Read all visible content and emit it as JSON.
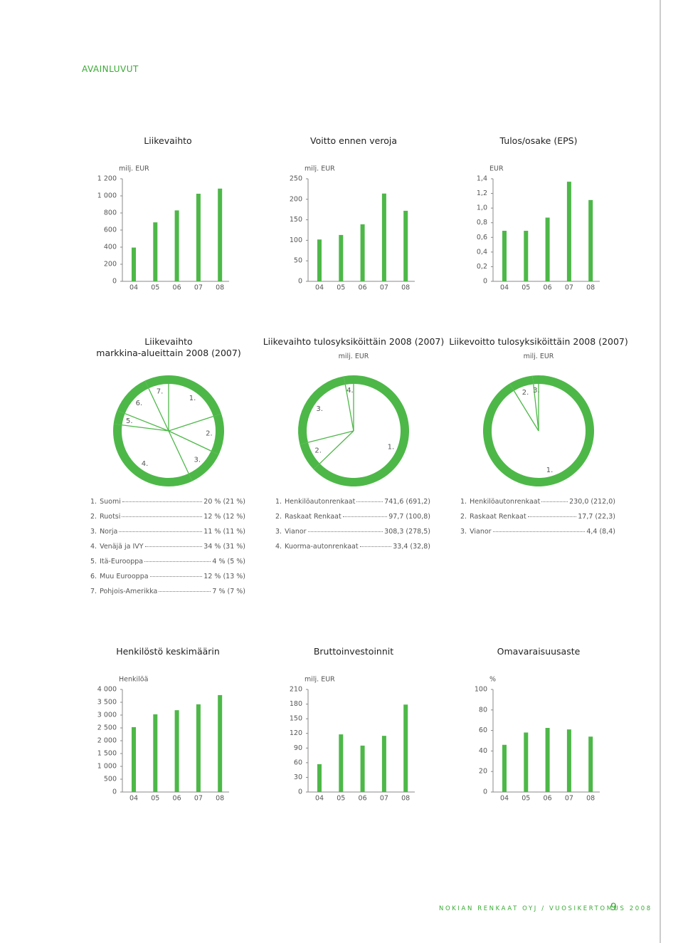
{
  "header": {
    "title": "AVAINLUVUT"
  },
  "chart_data": [
    {
      "type": "bar",
      "title": "Liikevaihto",
      "unit": "milj. EUR",
      "categories": [
        "04",
        "05",
        "06",
        "07",
        "08"
      ],
      "values": [
        395,
        690,
        830,
        1025,
        1085
      ],
      "color": "#4db848",
      "ylim": [
        0,
        1200
      ],
      "yticks": [
        0,
        200,
        400,
        600,
        800,
        {
          "value": 1000,
          "label": "1 000"
        },
        {
          "value": 1200,
          "label": "1 200"
        }
      ]
    },
    {
      "type": "bar",
      "title": "Voitto ennen veroja",
      "unit": "milj. EUR",
      "categories": [
        "04",
        "05",
        "06",
        "07",
        "08"
      ],
      "values": [
        102,
        113,
        139,
        214,
        172
      ],
      "color": "#4db848",
      "ylim": [
        0,
        250
      ],
      "yticks": [
        0,
        50,
        100,
        150,
        200,
        250
      ]
    },
    {
      "type": "bar",
      "title": "Tulos/osake (EPS)",
      "unit": "EUR",
      "categories": [
        "04",
        "05",
        "06",
        "07",
        "08"
      ],
      "values": [
        0.69,
        0.69,
        0.87,
        1.36,
        1.11
      ],
      "color": "#4db848",
      "ylim": [
        0,
        1.4
      ],
      "yticks": [
        0,
        {
          "value": 0.2,
          "label": "0,2"
        },
        {
          "value": 0.4,
          "label": "0,4"
        },
        {
          "value": 0.6,
          "label": "0,6"
        },
        {
          "value": 0.8,
          "label": "0,8"
        },
        {
          "value": 1.0,
          "label": "1,0"
        },
        {
          "value": 1.2,
          "label": "1,2"
        },
        {
          "value": 1.4,
          "label": "1,4"
        }
      ]
    },
    {
      "type": "donut",
      "title": "Liikevaihto\nmarkkina-alueittain 2008 (2007)",
      "color": "#4db848",
      "segment_labels": [
        "1.",
        "2.",
        "3.",
        "4.",
        "5.",
        "6.",
        "7."
      ],
      "categories": [
        "Suomi",
        "Ruotsi",
        "Norja",
        "Venäjä ja IVY",
        "Itä-Eurooppa",
        "Muu Eurooppa",
        "Pohjois-Amerikka"
      ],
      "values": [
        20,
        12,
        11,
        34,
        4,
        12,
        7
      ],
      "value_labels": [
        "20 % (21 %)",
        "12 % (12 %)",
        "11 % (11 %)",
        "34 % (31 %)",
        "4 % (5 %)",
        "12 % (13 %)",
        "7 % (7 %)"
      ]
    },
    {
      "type": "donut",
      "title": "Liikevaihto tulosyksiköittäin 2008 (2007)",
      "subtitle": "milj. EUR",
      "color": "#4db848",
      "segment_labels": [
        "1.",
        "2.",
        "3.",
        "4."
      ],
      "categories": [
        "Henkilöautonrenkaat",
        "Raskaat Renkaat",
        "Vianor",
        "Kuorma-autonrenkaat"
      ],
      "values": [
        741.6,
        97.7,
        308.3,
        33.4
      ],
      "value_labels": [
        "741,6 (691,2)",
        "97,7 (100,8)",
        "308,3 (278,5)",
        "33,4 (32,8)"
      ]
    },
    {
      "type": "donut",
      "title": "Liikevoitto tulosyksiköittäin 2008 (2007)",
      "subtitle": "milj. EUR",
      "color": "#4db848",
      "segment_labels": [
        "1.",
        "2.",
        "3."
      ],
      "categories": [
        "Henkilöautonrenkaat",
        "Raskaat Renkaat",
        "Vianor"
      ],
      "values": [
        230.0,
        17.7,
        4.4
      ],
      "value_labels": [
        "230,0 (212,0)",
        "17,7 (22,3)",
        "4,4 (8,4)"
      ]
    },
    {
      "type": "bar",
      "title": "Henkilöstö keskimäärin",
      "unit": "Henkilöä",
      "categories": [
        "04",
        "05",
        "06",
        "07",
        "08"
      ],
      "values": [
        2530,
        3030,
        3190,
        3420,
        3780
      ],
      "color": "#4db848",
      "ylim": [
        0,
        4000
      ],
      "yticks": [
        0,
        500,
        {
          "value": 1000,
          "label": "1 000"
        },
        {
          "value": 1500,
          "label": "1 500"
        },
        {
          "value": 2000,
          "label": "2 000"
        },
        {
          "value": 2500,
          "label": "2 500"
        },
        {
          "value": 3000,
          "label": "3 000"
        },
        {
          "value": 3500,
          "label": "3 500"
        },
        {
          "value": 4000,
          "label": "4 000"
        }
      ]
    },
    {
      "type": "bar",
      "title": "Bruttoinvestoinnit",
      "unit": "milj. EUR",
      "categories": [
        "04",
        "05",
        "06",
        "07",
        "08"
      ],
      "values": [
        57,
        118,
        95,
        115,
        179
      ],
      "color": "#4db848",
      "ylim": [
        0,
        210
      ],
      "yticks": [
        0,
        30,
        60,
        90,
        120,
        150,
        180,
        210
      ]
    },
    {
      "type": "bar",
      "title": "Omavaraisuusaste",
      "unit": "%",
      "categories": [
        "04",
        "05",
        "06",
        "07",
        "08"
      ],
      "values": [
        46,
        58,
        62.5,
        61,
        54
      ],
      "color": "#4db848",
      "ylim": [
        0,
        100
      ],
      "yticks": [
        0,
        20,
        40,
        60,
        80,
        100
      ]
    }
  ],
  "footer": {
    "text": "NOKIAN RENKAAT OYJ / VUOSIKERTOMUS 2008",
    "page_number": 9
  }
}
